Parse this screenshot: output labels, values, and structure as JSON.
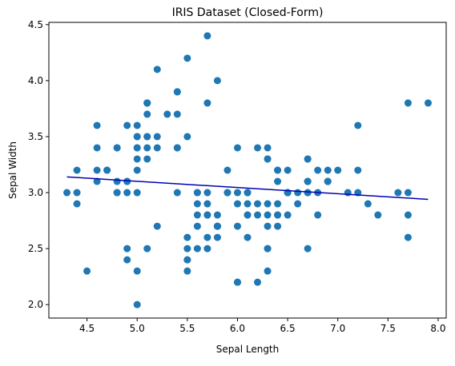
{
  "chart_data": {
    "type": "scatter",
    "title": "IRIS Dataset (Closed-Form)",
    "xlabel": "Sepal Length",
    "ylabel": "Sepal Width",
    "xlim": [
      4.12,
      8.08
    ],
    "ylim": [
      1.88,
      4.52
    ],
    "x_ticks": [
      "4.5",
      "5.0",
      "5.5",
      "6.0",
      "6.5",
      "7.0",
      "7.5",
      "8.0"
    ],
    "y_ticks": [
      "2.0",
      "2.5",
      "3.0",
      "3.5",
      "4.0",
      "4.5"
    ],
    "grid": false,
    "legend": "none",
    "series": [
      {
        "kind": "scatter",
        "color": "#1f77b4",
        "points": [
          [
            5.1,
            3.5
          ],
          [
            4.9,
            3.0
          ],
          [
            4.7,
            3.2
          ],
          [
            4.6,
            3.1
          ],
          [
            5.0,
            3.6
          ],
          [
            5.4,
            3.9
          ],
          [
            4.6,
            3.4
          ],
          [
            5.0,
            3.4
          ],
          [
            4.4,
            2.9
          ],
          [
            4.9,
            3.1
          ],
          [
            5.4,
            3.7
          ],
          [
            4.8,
            3.4
          ],
          [
            4.8,
            3.0
          ],
          [
            4.3,
            3.0
          ],
          [
            5.8,
            4.0
          ],
          [
            5.7,
            4.4
          ],
          [
            5.4,
            3.9
          ],
          [
            5.1,
            3.5
          ],
          [
            5.7,
            3.8
          ],
          [
            5.1,
            3.8
          ],
          [
            5.4,
            3.4
          ],
          [
            5.1,
            3.7
          ],
          [
            4.6,
            3.6
          ],
          [
            5.1,
            3.3
          ],
          [
            4.8,
            3.4
          ],
          [
            5.0,
            3.0
          ],
          [
            5.0,
            3.4
          ],
          [
            5.2,
            3.5
          ],
          [
            5.2,
            3.4
          ],
          [
            4.7,
            3.2
          ],
          [
            4.8,
            3.1
          ],
          [
            5.4,
            3.4
          ],
          [
            5.2,
            4.1
          ],
          [
            5.5,
            4.2
          ],
          [
            4.9,
            3.1
          ],
          [
            5.0,
            3.2
          ],
          [
            5.5,
            3.5
          ],
          [
            4.9,
            3.6
          ],
          [
            4.4,
            3.0
          ],
          [
            5.1,
            3.4
          ],
          [
            5.0,
            3.5
          ],
          [
            4.5,
            2.3
          ],
          [
            4.4,
            3.2
          ],
          [
            5.0,
            3.5
          ],
          [
            5.1,
            3.8
          ],
          [
            4.8,
            3.0
          ],
          [
            5.1,
            3.8
          ],
          [
            4.6,
            3.2
          ],
          [
            5.3,
            3.7
          ],
          [
            5.0,
            3.3
          ],
          [
            7.0,
            3.2
          ],
          [
            6.4,
            3.2
          ],
          [
            6.9,
            3.1
          ],
          [
            5.5,
            2.3
          ],
          [
            6.5,
            2.8
          ],
          [
            5.7,
            2.8
          ],
          [
            6.3,
            3.3
          ],
          [
            4.9,
            2.4
          ],
          [
            6.6,
            2.9
          ],
          [
            5.2,
            2.7
          ],
          [
            5.0,
            2.0
          ],
          [
            5.9,
            3.0
          ],
          [
            6.0,
            2.2
          ],
          [
            6.1,
            2.9
          ],
          [
            5.6,
            2.9
          ],
          [
            6.7,
            3.1
          ],
          [
            5.6,
            3.0
          ],
          [
            5.8,
            2.7
          ],
          [
            6.2,
            2.2
          ],
          [
            5.6,
            2.5
          ],
          [
            5.9,
            3.2
          ],
          [
            6.1,
            2.8
          ],
          [
            6.3,
            2.5
          ],
          [
            6.1,
            2.8
          ],
          [
            6.4,
            2.9
          ],
          [
            6.6,
            3.0
          ],
          [
            6.8,
            2.8
          ],
          [
            6.7,
            3.0
          ],
          [
            6.0,
            2.9
          ],
          [
            5.7,
            2.6
          ],
          [
            5.5,
            2.4
          ],
          [
            5.5,
            2.4
          ],
          [
            5.8,
            2.7
          ],
          [
            6.0,
            2.7
          ],
          [
            5.4,
            3.0
          ],
          [
            6.0,
            3.4
          ],
          [
            6.7,
            3.1
          ],
          [
            6.3,
            2.3
          ],
          [
            5.6,
            3.0
          ],
          [
            5.5,
            2.5
          ],
          [
            5.5,
            2.6
          ],
          [
            6.1,
            3.0
          ],
          [
            5.8,
            2.6
          ],
          [
            5.0,
            2.3
          ],
          [
            5.6,
            2.7
          ],
          [
            5.7,
            3.0
          ],
          [
            5.7,
            2.9
          ],
          [
            6.2,
            2.9
          ],
          [
            5.1,
            2.5
          ],
          [
            5.7,
            2.8
          ],
          [
            6.3,
            3.3
          ],
          [
            5.8,
            2.7
          ],
          [
            7.1,
            3.0
          ],
          [
            6.3,
            2.9
          ],
          [
            6.5,
            3.0
          ],
          [
            7.6,
            3.0
          ],
          [
            4.9,
            2.5
          ],
          [
            7.3,
            2.9
          ],
          [
            6.7,
            2.5
          ],
          [
            7.2,
            3.6
          ],
          [
            6.5,
            3.2
          ],
          [
            6.4,
            2.7
          ],
          [
            6.8,
            3.0
          ],
          [
            5.7,
            2.5
          ],
          [
            5.8,
            2.8
          ],
          [
            6.4,
            3.2
          ],
          [
            6.5,
            3.0
          ],
          [
            7.7,
            3.8
          ],
          [
            7.7,
            2.6
          ],
          [
            6.0,
            2.2
          ],
          [
            6.9,
            3.2
          ],
          [
            5.6,
            2.8
          ],
          [
            7.7,
            2.8
          ],
          [
            6.3,
            2.7
          ],
          [
            6.7,
            3.3
          ],
          [
            7.2,
            3.2
          ],
          [
            6.2,
            2.8
          ],
          [
            6.1,
            3.0
          ],
          [
            6.4,
            2.8
          ],
          [
            7.2,
            3.0
          ],
          [
            7.4,
            2.8
          ],
          [
            7.9,
            3.8
          ],
          [
            6.4,
            2.8
          ],
          [
            6.3,
            2.8
          ],
          [
            6.1,
            2.6
          ],
          [
            7.7,
            3.0
          ],
          [
            6.3,
            3.4
          ],
          [
            6.4,
            3.1
          ],
          [
            6.0,
            3.0
          ],
          [
            6.9,
            3.1
          ],
          [
            6.7,
            3.1
          ],
          [
            6.9,
            3.1
          ],
          [
            5.8,
            2.7
          ],
          [
            6.8,
            3.2
          ],
          [
            6.7,
            3.3
          ],
          [
            6.7,
            3.0
          ],
          [
            6.3,
            2.5
          ],
          [
            6.5,
            3.0
          ],
          [
            6.2,
            3.4
          ],
          [
            5.9,
            3.0
          ]
        ]
      },
      {
        "kind": "line",
        "color": "#0000b4",
        "points": [
          [
            4.3,
            3.14
          ],
          [
            7.9,
            2.94
          ]
        ]
      }
    ]
  }
}
